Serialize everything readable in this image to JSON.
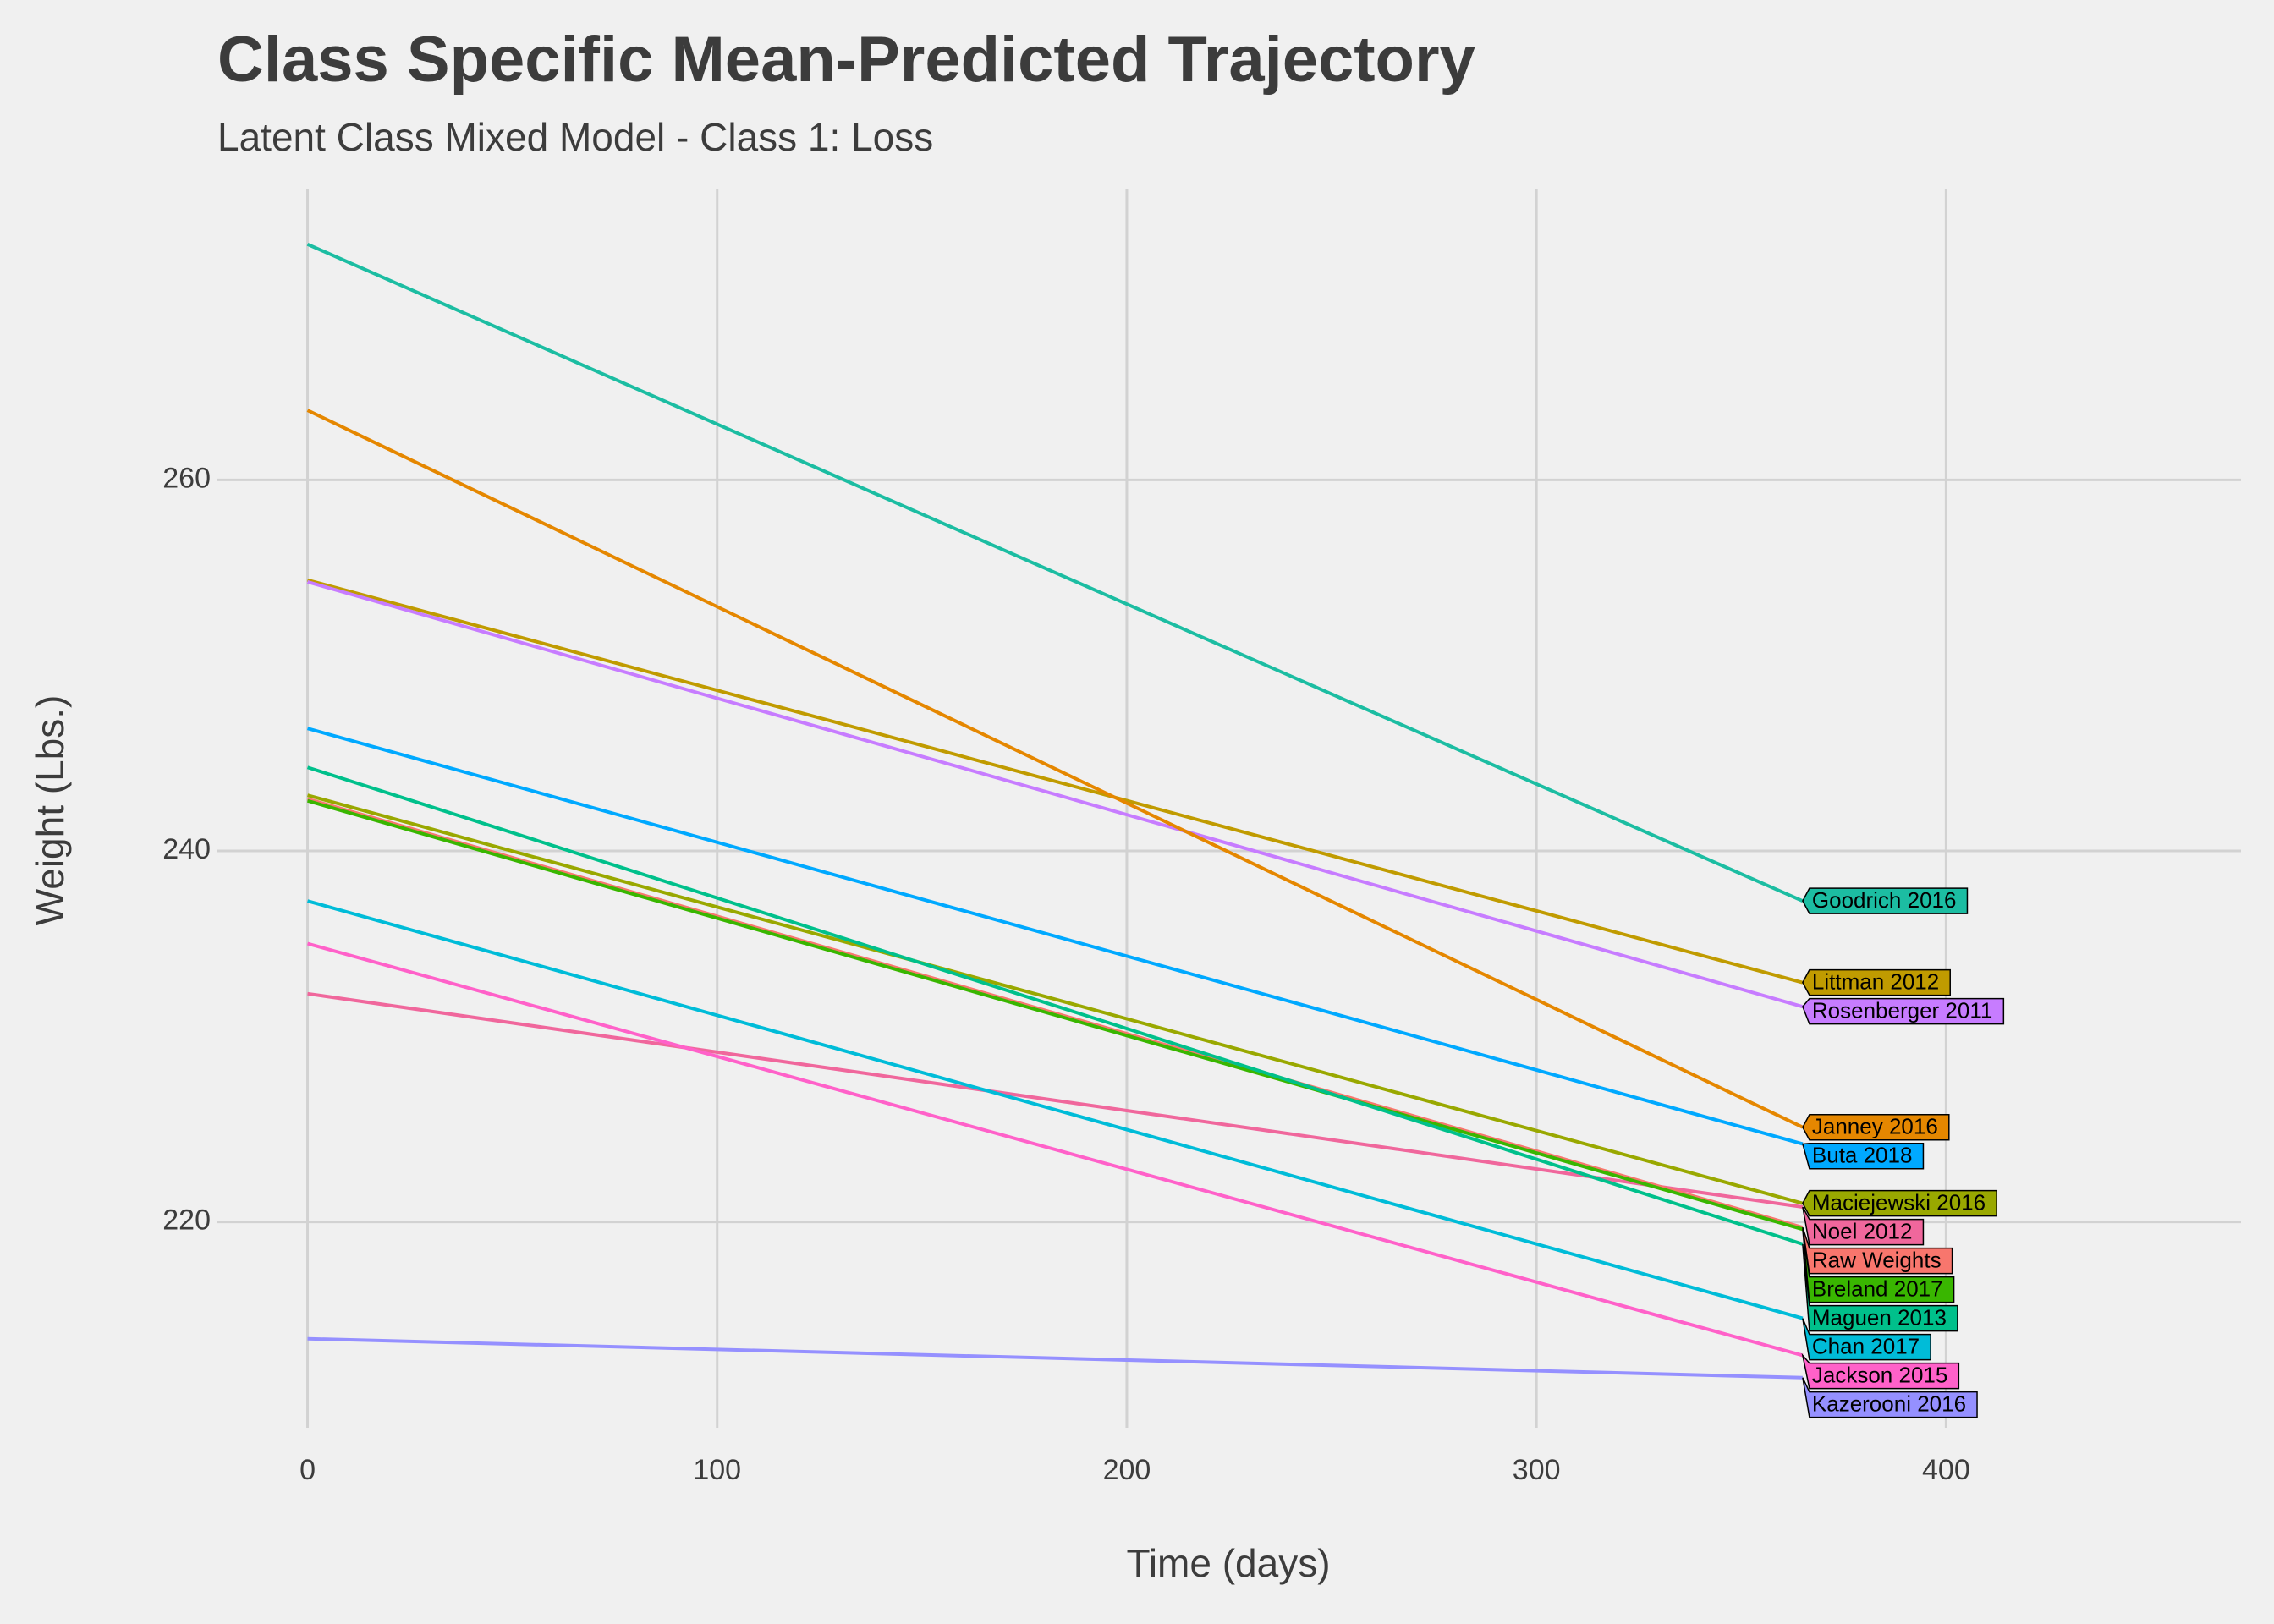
{
  "chart_data": {
    "type": "line",
    "title": "Class Specific Mean-Predicted Trajectory",
    "subtitle": "Latent Class Mixed Model - Class 1: Loss",
    "x_label": "Time (days)",
    "y_label": "Weight (Lbs.)",
    "x": [
      0,
      365
    ],
    "xlim": [
      -22,
      472
    ],
    "ylim": [
      208.9,
      275.7
    ],
    "xticks": [
      0,
      100,
      200,
      300,
      400
    ],
    "yticks": [
      220,
      240,
      260
    ],
    "grid": true,
    "series": [
      {
        "name": "Goodrich 2016",
        "color": "#1CBDA2",
        "values": [
          272.7,
          237.3
        ]
      },
      {
        "name": "Littman 2012",
        "color": "#C09B00",
        "values": [
          254.6,
          232.9
        ]
      },
      {
        "name": "Rosenberger 2011",
        "color": "#C77CFF",
        "values": [
          254.5,
          231.6
        ]
      },
      {
        "name": "Janney 2016",
        "color": "#E58700",
        "values": [
          263.75,
          225.1
        ]
      },
      {
        "name": "Buta 2018",
        "color": "#00A9FF",
        "values": [
          246.6,
          224.2
        ]
      },
      {
        "name": "Maciejewski 2016",
        "color": "#99A800",
        "values": [
          243.0,
          221.0
        ]
      },
      {
        "name": "Noel 2012",
        "color": "#F0679C",
        "values": [
          232.3,
          220.8
        ]
      },
      {
        "name": "Raw Weights",
        "color": "#F8766D",
        "values": [
          242.8,
          219.7
        ]
      },
      {
        "name": "Breland 2017",
        "color": "#39B600",
        "values": [
          242.7,
          219.6
        ]
      },
      {
        "name": "Maguen 2013",
        "color": "#00C08B",
        "values": [
          244.5,
          218.8
        ]
      },
      {
        "name": "Chan 2017",
        "color": "#00BCD8",
        "values": [
          237.3,
          214.8
        ]
      },
      {
        "name": "Jackson 2015",
        "color": "#FF61C9",
        "values": [
          235.0,
          212.8
        ]
      },
      {
        "name": "Kazerooni 2016",
        "color": "#9590FF",
        "values": [
          213.7,
          211.6
        ]
      }
    ]
  }
}
